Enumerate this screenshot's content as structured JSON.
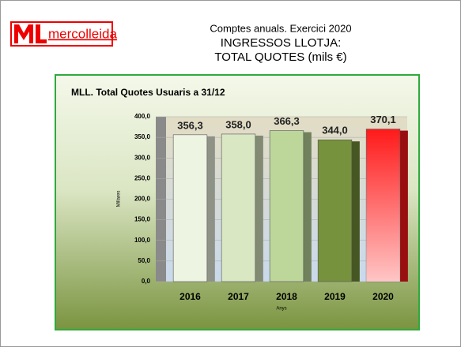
{
  "logo": "mercolleida",
  "header": {
    "lines": [
      "Comptes anuals. Exercici 2020",
      "INGRESSOS LLOTJA:",
      "TOTAL QUOTES  (mils €)"
    ]
  },
  "chart_data": {
    "type": "bar",
    "title": "MLL. Total Quotes Usuaris a 31/12",
    "x_label": "Anys",
    "y_label": "Millares",
    "categories": [
      "2016",
      "2017",
      "2018",
      "2019",
      "2020"
    ],
    "values": [
      356.3,
      358.0,
      366.3,
      344.0,
      370.1
    ],
    "value_labels": [
      "356,3",
      "358,0",
      "366,3",
      "344,0",
      "370,1"
    ],
    "colors": [
      "#eef4e2",
      "#d9e7c2",
      "#bdd79b",
      "#76923c",
      "#ff1a1a"
    ],
    "ylim": [
      0,
      400
    ],
    "yticks": [
      {
        "value": 0,
        "label": "0,0"
      },
      {
        "value": 50,
        "label": "50,0"
      },
      {
        "value": 100,
        "label": "100,0"
      },
      {
        "value": 150,
        "label": "150,0"
      },
      {
        "value": 200,
        "label": "200,0"
      },
      {
        "value": 250,
        "label": "250,0"
      },
      {
        "value": 300,
        "label": "300,0"
      },
      {
        "value": 350,
        "label": "350,0"
      },
      {
        "value": 400,
        "label": "400,0"
      }
    ],
    "grid": true
  }
}
